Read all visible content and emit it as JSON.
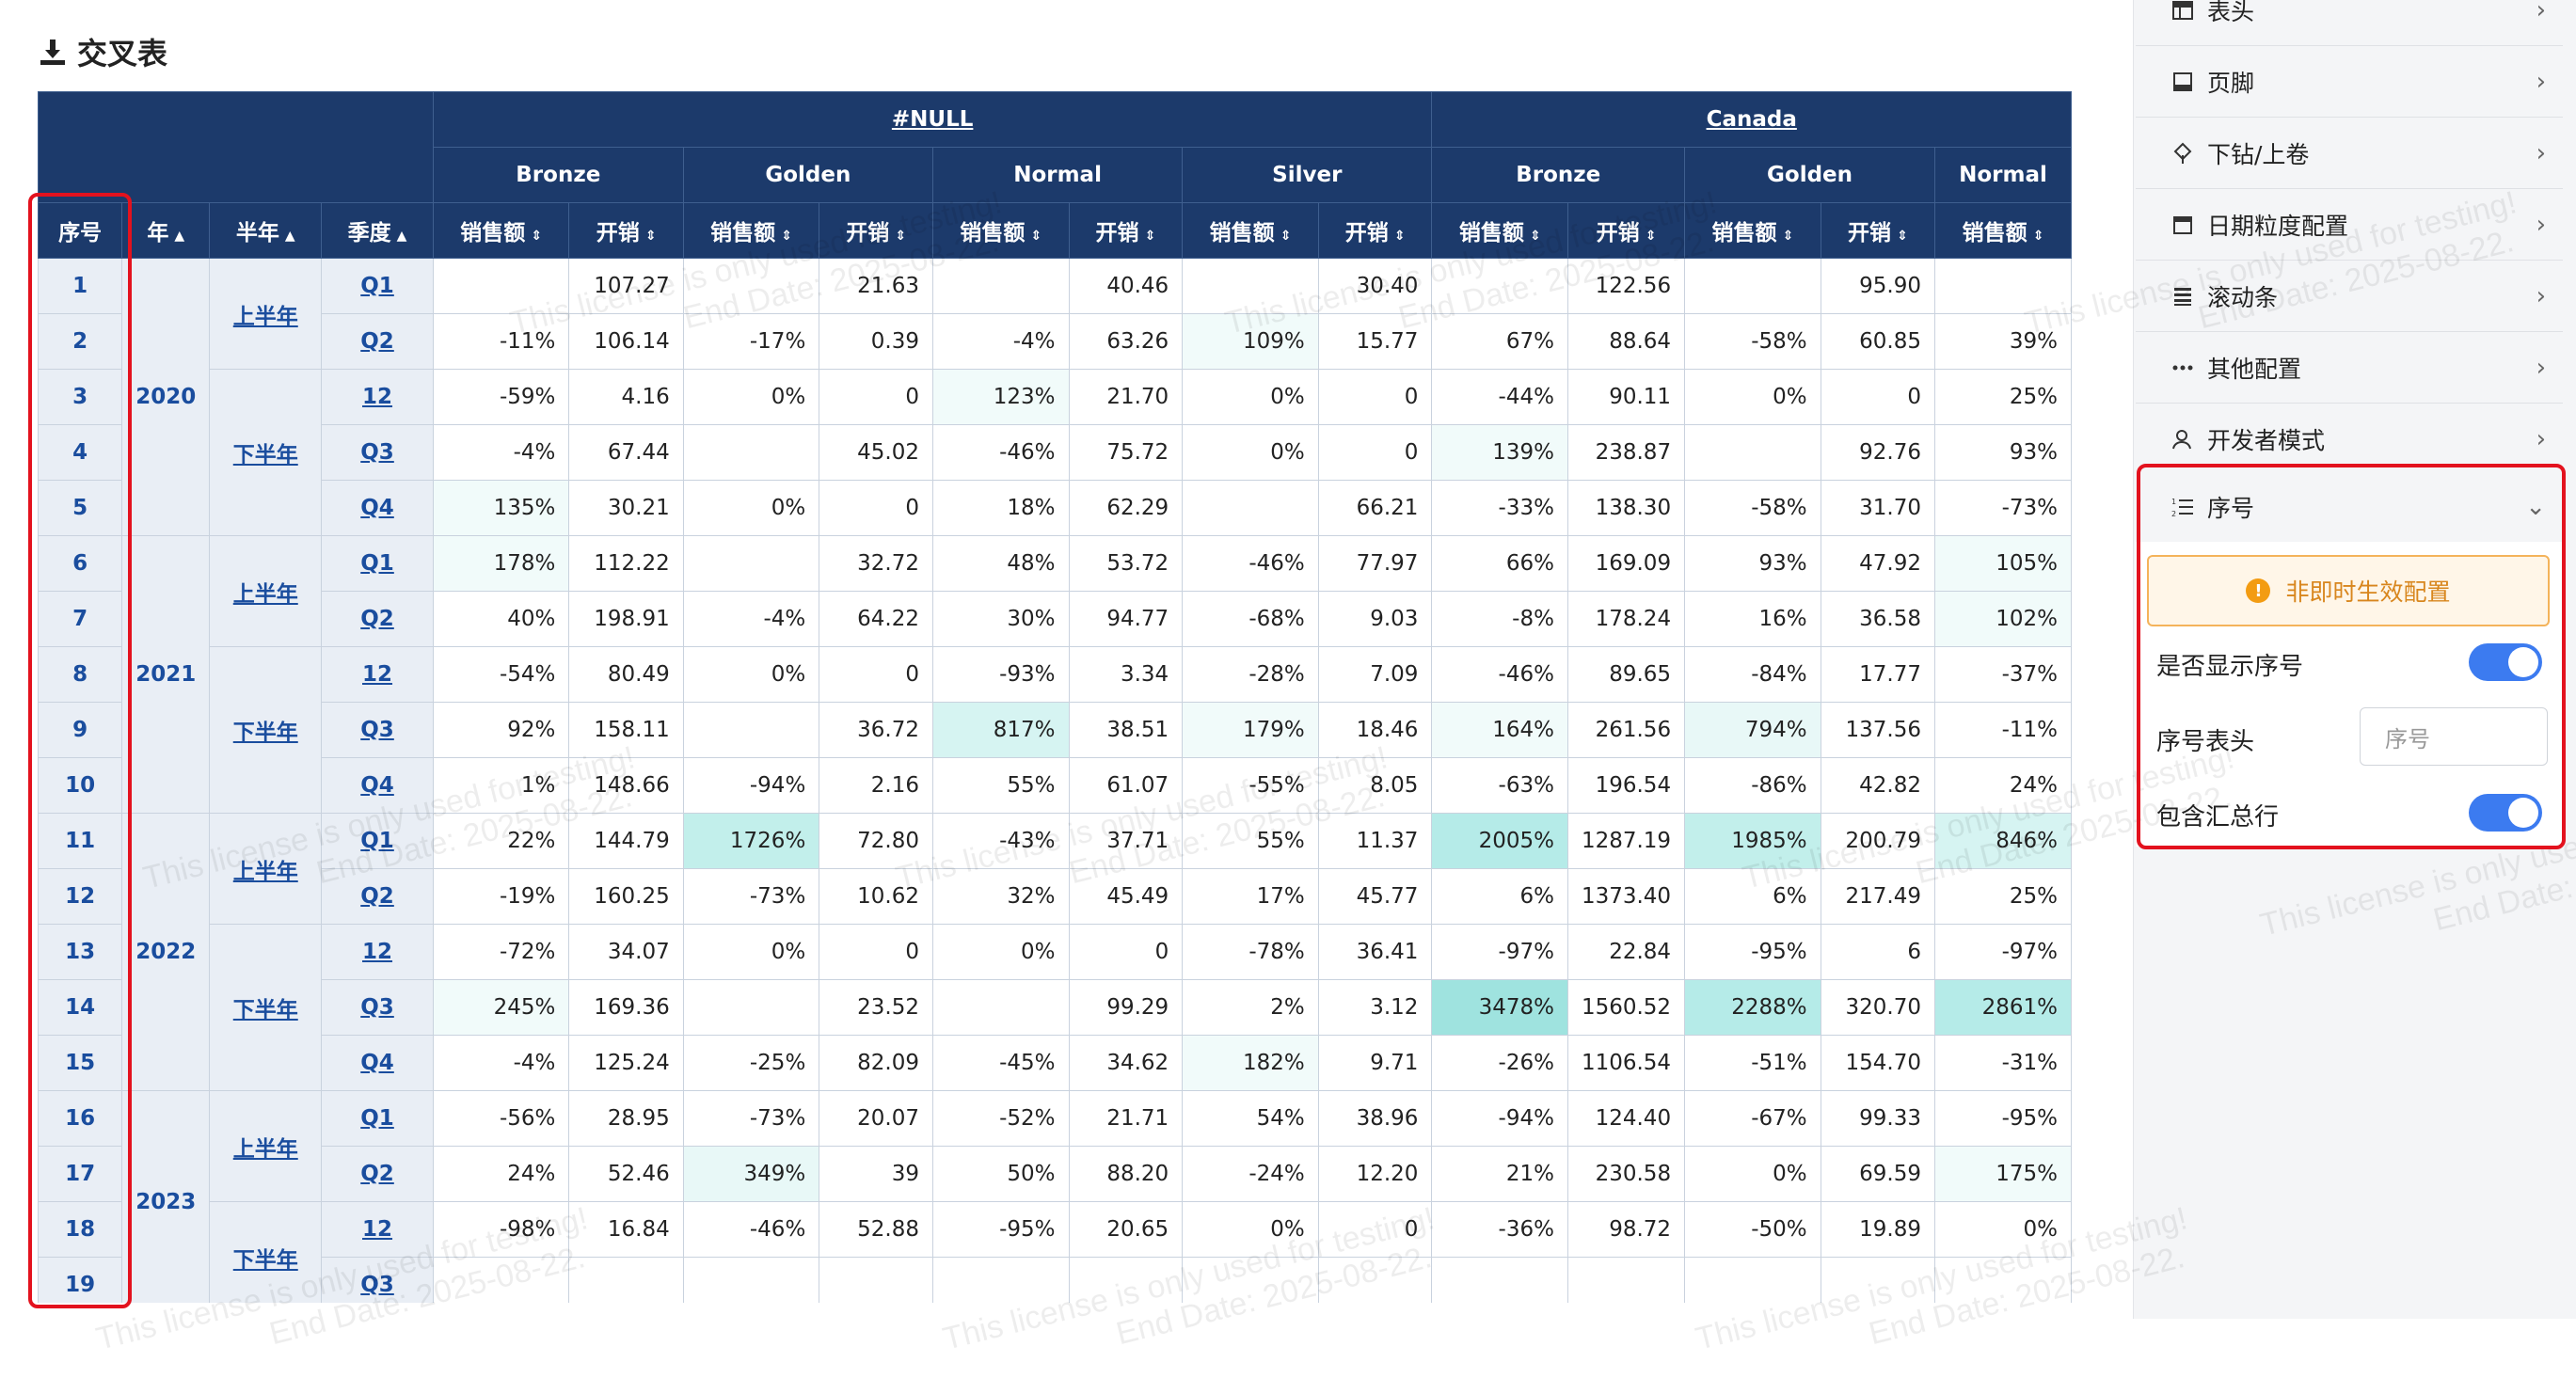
{
  "title": "交叉表",
  "col_countries": [
    "#NULL",
    "Canada"
  ],
  "col_grades": [
    "Bronze",
    "Golden",
    "Normal",
    "Silver",
    "Bronze",
    "Golden",
    "Normal"
  ],
  "measure_sales": "销售额",
  "measure_cost": "开销",
  "row_headers": {
    "index": "序号",
    "year": "年",
    "half": "半年",
    "quarter": "季度"
  },
  "years": [
    {
      "label": "2020",
      "rows": 5
    },
    {
      "label": "2021",
      "rows": 5
    },
    {
      "label": "2022",
      "rows": 5
    },
    {
      "label": "2023",
      "rows": 4
    }
  ],
  "halves": [
    {
      "label": "上半年",
      "rows": 2
    },
    {
      "label": "下半年",
      "rows": 3
    },
    {
      "label": "上半年",
      "rows": 2
    },
    {
      "label": "下半年",
      "rows": 3
    },
    {
      "label": "上半年",
      "rows": 2
    },
    {
      "label": "下半年",
      "rows": 3
    },
    {
      "label": "上半年",
      "rows": 2
    },
    {
      "label": "下半年",
      "rows": 2
    }
  ],
  "rows": [
    {
      "idx": "1",
      "q": "Q1",
      "c": [
        "",
        "107.27",
        "",
        "21.63",
        "",
        "40.46",
        "",
        "30.40",
        "",
        "122.56",
        "",
        "95.90",
        ""
      ]
    },
    {
      "idx": "2",
      "q": "Q2",
      "c": [
        "-11%",
        "106.14",
        "-17%",
        "0.39",
        "-4%",
        "63.26",
        "109%",
        "15.77",
        "67%",
        "88.64",
        "-58%",
        "60.85",
        "39%"
      ]
    },
    {
      "idx": "3",
      "q": "12",
      "c": [
        "-59%",
        "4.16",
        "0%",
        "0",
        "123%",
        "21.70",
        "0%",
        "0",
        "-44%",
        "90.11",
        "0%",
        "0",
        "25%"
      ]
    },
    {
      "idx": "4",
      "q": "Q3",
      "c": [
        "-4%",
        "67.44",
        "",
        "45.02",
        "-46%",
        "75.72",
        "0%",
        "0",
        "139%",
        "238.87",
        "",
        "92.76",
        "93%"
      ]
    },
    {
      "idx": "5",
      "q": "Q4",
      "c": [
        "135%",
        "30.21",
        "0%",
        "0",
        "18%",
        "62.29",
        "",
        "66.21",
        "-33%",
        "138.30",
        "-58%",
        "31.70",
        "-73%"
      ]
    },
    {
      "idx": "6",
      "q": "Q1",
      "c": [
        "178%",
        "112.22",
        "",
        "32.72",
        "48%",
        "53.72",
        "-46%",
        "77.97",
        "66%",
        "169.09",
        "93%",
        "47.92",
        "105%"
      ]
    },
    {
      "idx": "7",
      "q": "Q2",
      "c": [
        "40%",
        "198.91",
        "-4%",
        "64.22",
        "30%",
        "94.77",
        "-68%",
        "9.03",
        "-8%",
        "178.24",
        "16%",
        "36.58",
        "102%"
      ]
    },
    {
      "idx": "8",
      "q": "12",
      "c": [
        "-54%",
        "80.49",
        "0%",
        "0",
        "-93%",
        "3.34",
        "-28%",
        "7.09",
        "-46%",
        "89.65",
        "-84%",
        "17.77",
        "-37%"
      ]
    },
    {
      "idx": "9",
      "q": "Q3",
      "c": [
        "92%",
        "158.11",
        "",
        "36.72",
        "817%",
        "38.51",
        "179%",
        "18.46",
        "164%",
        "261.56",
        "794%",
        "137.56",
        "-11%"
      ]
    },
    {
      "idx": "10",
      "q": "Q4",
      "c": [
        "1%",
        "148.66",
        "-94%",
        "2.16",
        "55%",
        "61.07",
        "-55%",
        "8.05",
        "-63%",
        "196.54",
        "-86%",
        "42.82",
        "24%"
      ]
    },
    {
      "idx": "11",
      "q": "Q1",
      "c": [
        "22%",
        "144.79",
        "1726%",
        "72.80",
        "-43%",
        "37.71",
        "55%",
        "11.37",
        "2005%",
        "1287.19",
        "1985%",
        "200.79",
        "846%"
      ]
    },
    {
      "idx": "12",
      "q": "Q2",
      "c": [
        "-19%",
        "160.25",
        "-73%",
        "10.62",
        "32%",
        "45.49",
        "17%",
        "45.77",
        "6%",
        "1373.40",
        "6%",
        "217.49",
        "25%"
      ]
    },
    {
      "idx": "13",
      "q": "12",
      "c": [
        "-72%",
        "34.07",
        "0%",
        "0",
        "0%",
        "0",
        "-78%",
        "36.41",
        "-97%",
        "22.84",
        "-95%",
        "6",
        "-97%"
      ]
    },
    {
      "idx": "14",
      "q": "Q3",
      "c": [
        "245%",
        "169.36",
        "",
        "23.52",
        "",
        "99.29",
        "2%",
        "3.12",
        "3478%",
        "1560.52",
        "2288%",
        "320.70",
        "2861%"
      ]
    },
    {
      "idx": "15",
      "q": "Q4",
      "c": [
        "-4%",
        "125.24",
        "-25%",
        "82.09",
        "-45%",
        "34.62",
        "182%",
        "9.71",
        "-26%",
        "1106.54",
        "-51%",
        "154.70",
        "-31%"
      ]
    },
    {
      "idx": "16",
      "q": "Q1",
      "c": [
        "-56%",
        "28.95",
        "-73%",
        "20.07",
        "-52%",
        "21.71",
        "54%",
        "38.96",
        "-94%",
        "124.40",
        "-67%",
        "99.33",
        "-95%"
      ]
    },
    {
      "idx": "17",
      "q": "Q2",
      "c": [
        "24%",
        "52.46",
        "349%",
        "39",
        "50%",
        "88.20",
        "-24%",
        "12.20",
        "21%",
        "230.58",
        "0%",
        "69.59",
        "175%"
      ]
    },
    {
      "idx": "18",
      "q": "12",
      "c": [
        "-98%",
        "16.84",
        "-46%",
        "52.88",
        "-95%",
        "20.65",
        "0%",
        "0",
        "-36%",
        "98.72",
        "-50%",
        "19.89",
        "0%"
      ]
    },
    {
      "idx": "19",
      "q": "Q3",
      "c": [
        "",
        "",
        "",
        "",
        "",
        "",
        "",
        "",
        "",
        "",
        "",
        "",
        ""
      ]
    }
  ],
  "panel": {
    "items": [
      "表头",
      "页脚",
      "下钻/上卷",
      "日期粒度配置",
      "滚动条",
      "其他配置",
      "开发者模式"
    ],
    "section_title": "序号",
    "warning": "非即时生效配置",
    "show_index_label": "是否显示序号",
    "index_header_label": "序号表头",
    "index_header_value": "序号",
    "include_total_label": "包含汇总行"
  },
  "watermark": {
    "line1": "This license is only used for testing!",
    "line2": "End Date: 2025-08-22."
  }
}
